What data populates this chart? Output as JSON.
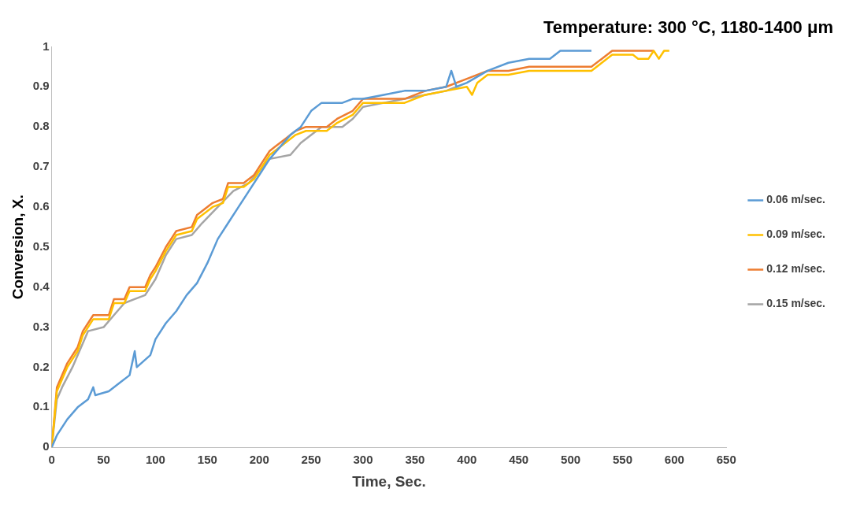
{
  "chart_data": {
    "type": "line",
    "title": "Temperature: 300 °C, 1180-1400 μm",
    "xlabel": "Time, Sec.",
    "ylabel": "Conversion, X.",
    "xlim": [
      0,
      650
    ],
    "xticks": [
      0,
      50,
      100,
      150,
      200,
      250,
      300,
      350,
      400,
      450,
      500,
      550,
      600,
      650
    ],
    "ylim": [
      0,
      1
    ],
    "yticks": [
      0,
      0.1,
      0.2,
      0.3,
      0.4,
      0.5,
      0.6,
      0.7,
      0.8,
      0.9,
      1
    ],
    "grid": false,
    "legend": "right",
    "marker": "none",
    "line_style": "solid",
    "series": [
      {
        "name": "0.06 m/sec.",
        "color": "#5b9bd5",
        "x": [
          0,
          5,
          15,
          25,
          35,
          40,
          42,
          55,
          65,
          75,
          80,
          82,
          95,
          100,
          110,
          120,
          130,
          140,
          150,
          160,
          170,
          180,
          190,
          200,
          210,
          220,
          230,
          240,
          250,
          260,
          280,
          290,
          300,
          320,
          340,
          360,
          380,
          385,
          390,
          400,
          420,
          440,
          460,
          480,
          490,
          520
        ],
        "values": [
          0,
          0.03,
          0.07,
          0.1,
          0.12,
          0.15,
          0.13,
          0.14,
          0.16,
          0.18,
          0.24,
          0.2,
          0.23,
          0.27,
          0.31,
          0.34,
          0.38,
          0.41,
          0.46,
          0.52,
          0.56,
          0.6,
          0.64,
          0.68,
          0.72,
          0.75,
          0.78,
          0.8,
          0.84,
          0.86,
          0.86,
          0.87,
          0.87,
          0.88,
          0.89,
          0.89,
          0.9,
          0.94,
          0.9,
          0.91,
          0.94,
          0.96,
          0.97,
          0.97,
          0.99,
          0.99
        ]
      },
      {
        "name": "0.09 m/sec.",
        "color": "#ffc000",
        "x": [
          0,
          5,
          10,
          15,
          25,
          30,
          35,
          40,
          55,
          60,
          70,
          75,
          90,
          95,
          100,
          110,
          115,
          120,
          135,
          140,
          155,
          165,
          170,
          185,
          195,
          210,
          215,
          225,
          235,
          245,
          265,
          275,
          290,
          300,
          340,
          360,
          380,
          400,
          405,
          410,
          420,
          440,
          460,
          500,
          520,
          530,
          540,
          560,
          565,
          575,
          580,
          585,
          590,
          595
        ],
        "values": [
          0,
          0.14,
          0.17,
          0.2,
          0.24,
          0.28,
          0.3,
          0.32,
          0.32,
          0.36,
          0.36,
          0.39,
          0.39,
          0.42,
          0.44,
          0.49,
          0.51,
          0.53,
          0.54,
          0.57,
          0.6,
          0.61,
          0.65,
          0.65,
          0.67,
          0.73,
          0.74,
          0.76,
          0.78,
          0.79,
          0.79,
          0.81,
          0.83,
          0.86,
          0.86,
          0.88,
          0.89,
          0.9,
          0.88,
          0.91,
          0.93,
          0.93,
          0.94,
          0.94,
          0.94,
          0.96,
          0.98,
          0.98,
          0.97,
          0.97,
          0.99,
          0.97,
          0.99,
          0.99
        ]
      },
      {
        "name": "0.12 m/sec.",
        "color": "#ed7d31",
        "x": [
          0,
          5,
          10,
          15,
          25,
          30,
          35,
          40,
          55,
          60,
          70,
          75,
          90,
          95,
          100,
          110,
          115,
          120,
          135,
          140,
          155,
          165,
          170,
          185,
          195,
          210,
          215,
          225,
          235,
          245,
          265,
          275,
          290,
          300,
          340,
          360,
          380,
          400,
          420,
          440,
          460,
          500,
          520,
          530,
          540,
          580
        ],
        "values": [
          0,
          0.15,
          0.18,
          0.21,
          0.25,
          0.29,
          0.31,
          0.33,
          0.33,
          0.37,
          0.37,
          0.4,
          0.4,
          0.43,
          0.45,
          0.5,
          0.52,
          0.54,
          0.55,
          0.58,
          0.61,
          0.62,
          0.66,
          0.66,
          0.68,
          0.74,
          0.75,
          0.77,
          0.79,
          0.8,
          0.8,
          0.82,
          0.84,
          0.87,
          0.87,
          0.89,
          0.9,
          0.92,
          0.94,
          0.94,
          0.95,
          0.95,
          0.95,
          0.97,
          0.99,
          0.99
        ]
      },
      {
        "name": "0.15 m/sec.",
        "color": "#a5a5a5",
        "x": [
          0,
          5,
          10,
          20,
          30,
          35,
          50,
          60,
          70,
          80,
          90,
          100,
          110,
          120,
          135,
          145,
          160,
          175,
          190,
          200,
          210,
          230,
          240,
          260,
          280,
          290,
          300,
          320,
          340,
          360,
          380,
          390
        ],
        "values": [
          0,
          0.12,
          0.15,
          0.2,
          0.26,
          0.29,
          0.3,
          0.33,
          0.36,
          0.37,
          0.38,
          0.42,
          0.48,
          0.52,
          0.53,
          0.56,
          0.6,
          0.64,
          0.66,
          0.69,
          0.72,
          0.73,
          0.76,
          0.8,
          0.8,
          0.82,
          0.85,
          0.86,
          0.87,
          0.88,
          0.89,
          0.9
        ]
      }
    ]
  }
}
